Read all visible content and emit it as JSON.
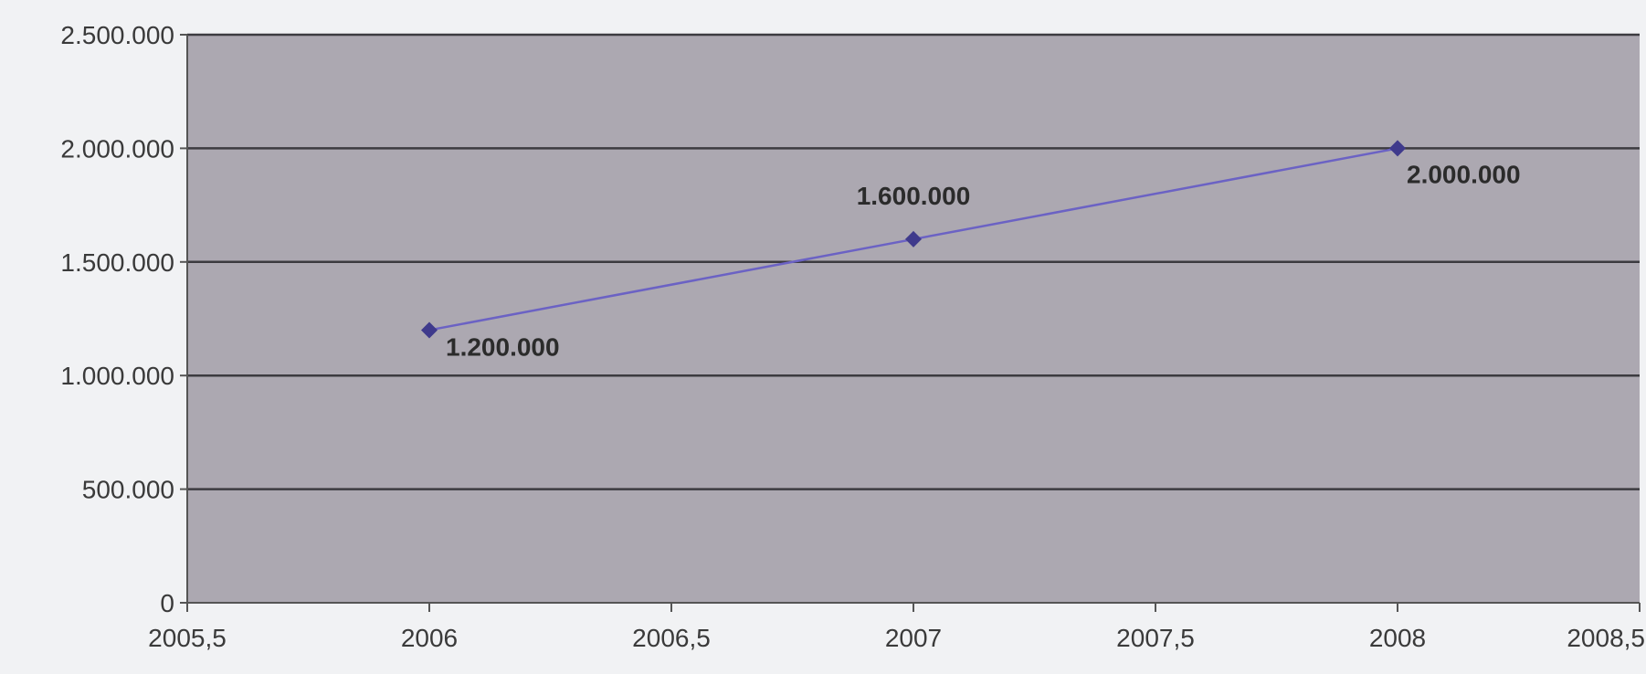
{
  "chart_data": {
    "type": "scatter",
    "title": "",
    "xlabel": "",
    "ylabel": "",
    "xlim": [
      2005.5,
      2008.5
    ],
    "ylim": [
      0,
      2500000
    ],
    "grid": true,
    "legend": "none",
    "x_ticks": [
      {
        "value": 2005.5,
        "label": "2005,5"
      },
      {
        "value": 2006,
        "label": "2006"
      },
      {
        "value": 2006.5,
        "label": "2006,5"
      },
      {
        "value": 2007,
        "label": "2007"
      },
      {
        "value": 2007.5,
        "label": "2007,5"
      },
      {
        "value": 2008,
        "label": "2008"
      },
      {
        "value": 2008.5,
        "label": "2008,5"
      }
    ],
    "y_ticks": [
      {
        "value": 0,
        "label": "0"
      },
      {
        "value": 500000,
        "label": "500.000"
      },
      {
        "value": 1000000,
        "label": "1.000.000"
      },
      {
        "value": 1500000,
        "label": "1.500.000"
      },
      {
        "value": 2000000,
        "label": "2.000.000"
      },
      {
        "value": 2500000,
        "label": "2.500.000"
      }
    ],
    "series": [
      {
        "x": [
          2006,
          2007,
          2008
        ],
        "y": [
          1200000,
          1600000,
          2000000
        ],
        "data_labels": [
          "1.200.000",
          "1.600.000",
          "2.000.000"
        ]
      }
    ],
    "colors": {
      "plot_background": "#aca8b1",
      "gridline": "#3c3b40",
      "series_line": "#6b62c4",
      "marker": "#3f3a8c",
      "axis": "#555555"
    }
  }
}
